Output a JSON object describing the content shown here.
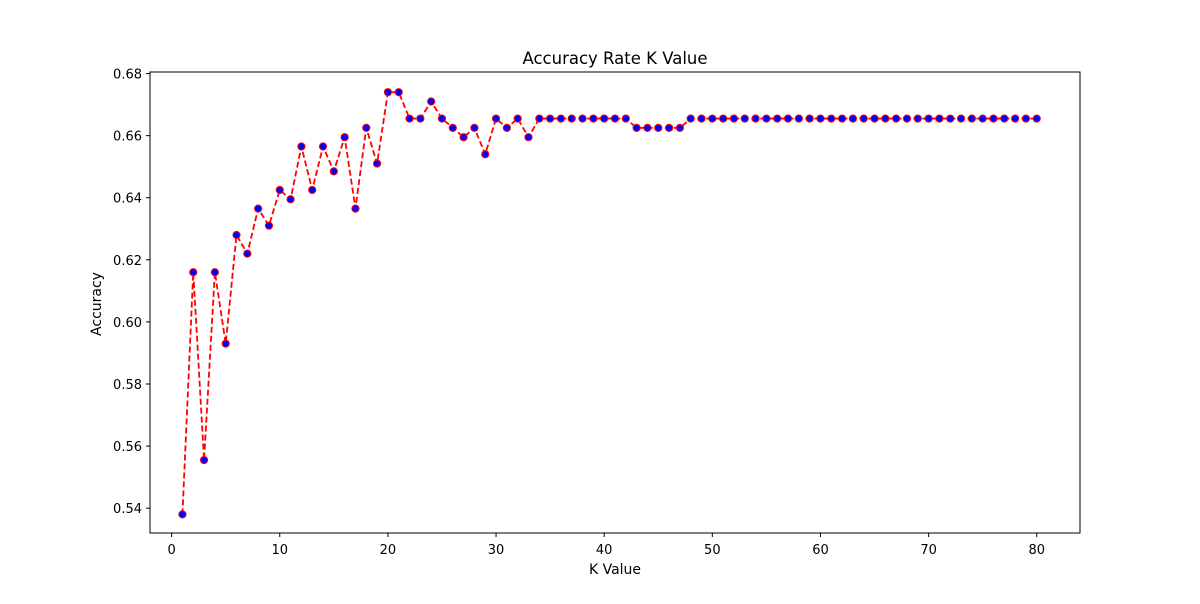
{
  "chart_data": {
    "type": "line",
    "title": "Accuracy Rate K Value",
    "xlabel": "K Value",
    "ylabel": "Accuracy",
    "xlim": [
      -2,
      84
    ],
    "ylim": [
      0.532,
      0.6805
    ],
    "xticks": [
      0,
      10,
      20,
      30,
      40,
      50,
      60,
      70,
      80
    ],
    "xtick_labels": [
      "0",
      "10",
      "20",
      "30",
      "40",
      "50",
      "60",
      "70",
      "80"
    ],
    "yticks": [
      0.54,
      0.56,
      0.58,
      0.6,
      0.62,
      0.64,
      0.66,
      0.68
    ],
    "ytick_labels": [
      "0.54",
      "0.56",
      "0.58",
      "0.60",
      "0.62",
      "0.64",
      "0.66",
      "0.68"
    ],
    "grid": false,
    "line_color": "#ff0000",
    "line_style": "dashed",
    "marker_face_color": "#0000ff",
    "marker_edge_color": "#ff0000",
    "series": [
      {
        "x": [
          1,
          2,
          3,
          4,
          5,
          6,
          7,
          8,
          9,
          10,
          11,
          12,
          13,
          14,
          15,
          16,
          17,
          18,
          19,
          20,
          21,
          22,
          23,
          24,
          25,
          26,
          27,
          28,
          29,
          30,
          31,
          32,
          33,
          34,
          35,
          36,
          37,
          38,
          39,
          40,
          41,
          42,
          43,
          44,
          45,
          46,
          47,
          48,
          49,
          50,
          51,
          52,
          53,
          54,
          55,
          56,
          57,
          58,
          59,
          60,
          61,
          62,
          63,
          64,
          65,
          66,
          67,
          68,
          69,
          70,
          71,
          72,
          73,
          74,
          75,
          76,
          77,
          78,
          79,
          80
        ],
        "values": [
          0.538,
          0.616,
          0.5555,
          0.616,
          0.593,
          0.628,
          0.622,
          0.6365,
          0.631,
          0.6425,
          0.6395,
          0.6565,
          0.6425,
          0.6565,
          0.6485,
          0.6595,
          0.6365,
          0.6625,
          0.651,
          0.674,
          0.674,
          0.6655,
          0.6655,
          0.671,
          0.6655,
          0.6625,
          0.6595,
          0.6625,
          0.654,
          0.6655,
          0.6625,
          0.6655,
          0.6595,
          0.6655,
          0.6655,
          0.6655,
          0.6655,
          0.6655,
          0.6655,
          0.6655,
          0.6655,
          0.6655,
          0.6625,
          0.6625,
          0.6625,
          0.6625,
          0.6625,
          0.6655,
          0.6655,
          0.6655,
          0.6655,
          0.6655,
          0.6655,
          0.6655,
          0.6655,
          0.6655,
          0.6655,
          0.6655,
          0.6655,
          0.6655,
          0.6655,
          0.6655,
          0.6655,
          0.6655,
          0.6655,
          0.6655,
          0.6655,
          0.6655,
          0.6655,
          0.6655,
          0.6655,
          0.6655,
          0.6655,
          0.6655,
          0.6655,
          0.6655,
          0.6655,
          0.6655,
          0.6655,
          0.6655
        ]
      }
    ]
  }
}
